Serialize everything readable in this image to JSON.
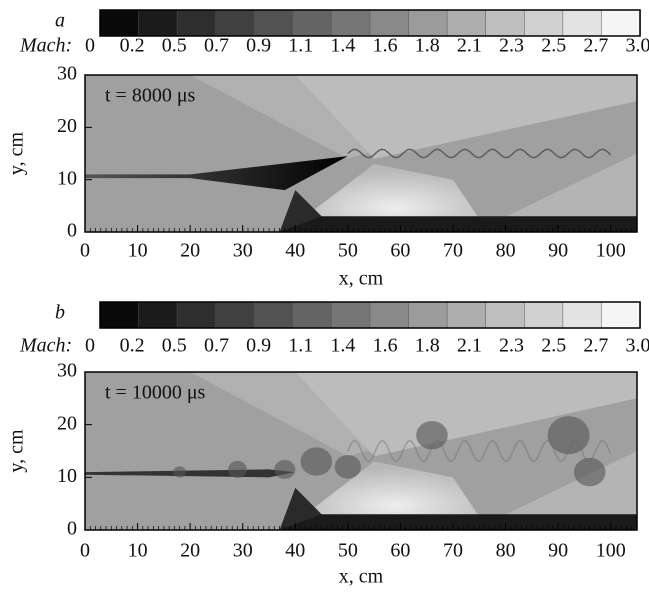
{
  "panels": [
    {
      "label": "a",
      "annotation": "t = 8000 μs",
      "colorbar": {
        "title": "Mach:",
        "ticks": [
          0,
          0.2,
          0.5,
          0.7,
          0.9,
          1.1,
          1.4,
          1.6,
          1.8,
          2.1,
          2.3,
          2.5,
          2.7,
          {
            "value": 3,
            "label": "3.0"
          }
        ]
      },
      "xlabel": "x, cm",
      "ylabel": "y, cm",
      "xlim": [
        0,
        105
      ],
      "ylim": [
        0,
        30
      ],
      "xticks": [
        0,
        10,
        20,
        30,
        40,
        50,
        60,
        70,
        80,
        90,
        100
      ],
      "yticks": [
        0,
        10,
        20,
        30
      ]
    },
    {
      "label": "b",
      "annotation": "t = 10000 μs",
      "colorbar": {
        "title": "Mach:",
        "ticks": [
          0,
          0.2,
          0.5,
          0.7,
          0.9,
          1.1,
          1.4,
          1.6,
          1.8,
          2.1,
          2.3,
          2.5,
          2.7,
          {
            "value": 3,
            "label": "3.0"
          }
        ]
      },
      "xlabel": "x, cm",
      "ylabel": "y, cm",
      "xlim": [
        0,
        105
      ],
      "ylim": [
        0,
        30
      ],
      "xticks": [
        0,
        10,
        20,
        30,
        40,
        50,
        60,
        70,
        80,
        90,
        100
      ],
      "yticks": [
        0,
        10,
        20,
        30
      ]
    }
  ]
}
